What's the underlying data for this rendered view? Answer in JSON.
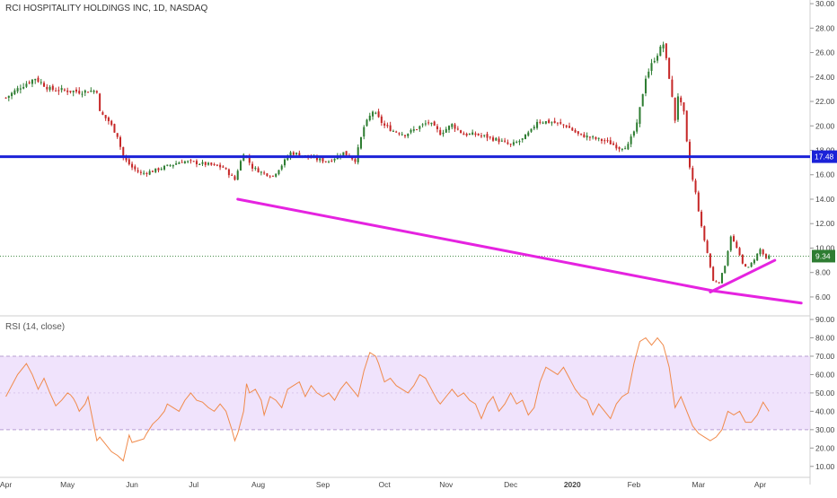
{
  "chart_data": [
    {
      "type": "candlestick",
      "title": "RCI HOSPITALITY HOLDINGS INC, 1D, NASDAQ",
      "y_ticks": [
        "6.00",
        "8.00",
        "10.00",
        "12.00",
        "14.00",
        "16.00",
        "18.00",
        "20.00",
        "22.00",
        "24.00",
        "26.00",
        "28.00",
        "30.00"
      ],
      "ylim": [
        4.6,
        30.3
      ],
      "x_labels": [
        "Apr",
        "May",
        "Jun",
        "Jul",
        "Aug",
        "Sep",
        "Oct",
        "Nov",
        "Dec",
        "2020",
        "Feb",
        "Mar",
        "Apr"
      ],
      "x_positions": [
        0,
        21,
        43,
        64,
        86,
        108,
        129,
        150,
        172,
        193,
        214,
        236,
        257
      ],
      "x_range": [
        -2,
        274
      ],
      "close_path": [
        [
          0,
          22.3
        ],
        [
          5,
          23.2
        ],
        [
          10,
          23.9
        ],
        [
          15,
          23.0
        ],
        [
          20,
          22.9
        ],
        [
          25,
          22.8
        ],
        [
          31,
          22.9
        ],
        [
          32,
          21.1
        ],
        [
          35,
          20.4
        ],
        [
          38,
          19.2
        ],
        [
          40,
          17.4
        ],
        [
          43,
          16.6
        ],
        [
          46,
          16.1
        ],
        [
          50,
          16.3
        ],
        [
          55,
          16.7
        ],
        [
          60,
          17.1
        ],
        [
          64,
          17.0
        ],
        [
          70,
          16.8
        ],
        [
          74,
          16.6
        ],
        [
          78,
          15.6
        ],
        [
          79,
          16.4
        ],
        [
          81,
          17.8
        ],
        [
          84,
          16.6
        ],
        [
          87,
          16.2
        ],
        [
          91,
          15.9
        ],
        [
          94,
          16.8
        ],
        [
          97,
          17.8
        ],
        [
          101,
          17.6
        ],
        [
          105,
          17.3
        ],
        [
          110,
          17.1
        ],
        [
          115,
          17.8
        ],
        [
          119,
          17.2
        ],
        [
          122,
          19.9
        ],
        [
          125,
          21.2
        ],
        [
          129,
          20.0
        ],
        [
          132,
          19.6
        ],
        [
          136,
          19.3
        ],
        [
          140,
          19.8
        ],
        [
          144,
          20.3
        ],
        [
          148,
          19.4
        ],
        [
          152,
          20.1
        ],
        [
          156,
          19.3
        ],
        [
          160,
          19.3
        ],
        [
          164,
          19.1
        ],
        [
          168,
          18.8
        ],
        [
          172,
          18.4
        ],
        [
          176,
          18.9
        ],
        [
          179,
          19.6
        ],
        [
          181,
          20.4
        ],
        [
          186,
          20.3
        ],
        [
          191,
          20.0
        ],
        [
          195,
          19.3
        ],
        [
          200,
          19.0
        ],
        [
          205,
          18.7
        ],
        [
          209,
          18.2
        ],
        [
          212,
          18.4
        ],
        [
          215,
          20.1
        ],
        [
          218,
          24.0
        ],
        [
          221,
          25.5
        ],
        [
          224,
          26.7
        ],
        [
          226,
          24.0
        ],
        [
          228,
          20.5
        ],
        [
          229,
          22.5
        ],
        [
          231,
          21.0
        ],
        [
          232,
          18.6
        ],
        [
          233,
          16.6
        ],
        [
          235,
          14.5
        ],
        [
          237,
          11.7
        ],
        [
          239,
          9.6
        ],
        [
          241,
          7.3
        ],
        [
          243,
          7.2
        ],
        [
          245,
          8.6
        ],
        [
          247,
          11.0
        ],
        [
          249,
          10.0
        ],
        [
          251,
          8.7
        ],
        [
          253,
          8.4
        ],
        [
          255,
          9.1
        ],
        [
          257,
          9.9
        ],
        [
          259,
          9.1
        ],
        [
          260,
          9.34
        ]
      ],
      "current_price": "9.34",
      "horizontal_level": {
        "value": 17.48,
        "label": "17.48",
        "color": "#1b22d8"
      },
      "trendlines": [
        {
          "name": "support-trendline",
          "color": "#e523e0",
          "points": [
            [
              79,
              14.0
            ],
            [
              241,
              6.5
            ],
            [
              271,
              5.5
            ]
          ]
        },
        {
          "name": "short-uptrend-line",
          "color": "#e523e0",
          "points": [
            [
              240,
              6.4
            ],
            [
              262,
              9.0
            ]
          ]
        }
      ],
      "up_color": "#2e7d32",
      "down_color": "#c62828"
    },
    {
      "type": "line",
      "title": "RSI (14, close)",
      "y_ticks": [
        "10.00",
        "20.00",
        "30.00",
        "40.00",
        "50.00",
        "60.00",
        "70.00",
        "80.00",
        "90.00"
      ],
      "ylim": [
        5,
        91
      ],
      "band": [
        30,
        70
      ],
      "band_color": "#ebd9fb",
      "line_color": "#f08a4b",
      "x_range": [
        -2,
        274
      ],
      "points": [
        [
          0,
          48
        ],
        [
          4,
          60
        ],
        [
          7,
          66
        ],
        [
          9,
          60
        ],
        [
          11,
          52
        ],
        [
          13,
          58
        ],
        [
          15,
          50
        ],
        [
          17,
          43
        ],
        [
          19,
          46
        ],
        [
          21,
          50
        ],
        [
          22,
          49
        ],
        [
          23,
          47
        ],
        [
          24,
          44
        ],
        [
          25,
          40
        ],
        [
          27,
          44
        ],
        [
          28,
          48
        ],
        [
          29,
          40
        ],
        [
          30,
          32
        ],
        [
          31,
          24
        ],
        [
          32,
          26
        ],
        [
          34,
          22
        ],
        [
          36,
          18
        ],
        [
          38,
          16
        ],
        [
          40,
          13
        ],
        [
          41,
          20
        ],
        [
          42,
          27
        ],
        [
          43,
          23
        ],
        [
          45,
          24
        ],
        [
          47,
          25
        ],
        [
          48,
          28
        ],
        [
          50,
          33
        ],
        [
          52,
          36
        ],
        [
          54,
          40
        ],
        [
          55,
          44
        ],
        [
          57,
          42
        ],
        [
          59,
          40
        ],
        [
          61,
          46
        ],
        [
          63,
          50
        ],
        [
          65,
          46
        ],
        [
          67,
          45
        ],
        [
          69,
          42
        ],
        [
          71,
          40
        ],
        [
          73,
          44
        ],
        [
          75,
          40
        ],
        [
          77,
          30
        ],
        [
          78,
          24
        ],
        [
          79,
          28
        ],
        [
          81,
          40
        ],
        [
          82,
          55
        ],
        [
          83,
          50
        ],
        [
          85,
          52
        ],
        [
          87,
          46
        ],
        [
          88,
          38
        ],
        [
          90,
          48
        ],
        [
          92,
          46
        ],
        [
          94,
          42
        ],
        [
          96,
          52
        ],
        [
          98,
          54
        ],
        [
          100,
          56
        ],
        [
          102,
          48
        ],
        [
          104,
          54
        ],
        [
          106,
          50
        ],
        [
          108,
          48
        ],
        [
          110,
          50
        ],
        [
          112,
          46
        ],
        [
          114,
          52
        ],
        [
          116,
          56
        ],
        [
          118,
          52
        ],
        [
          120,
          48
        ],
        [
          122,
          62
        ],
        [
          124,
          72
        ],
        [
          126,
          70
        ],
        [
          127,
          66
        ],
        [
          129,
          56
        ],
        [
          131,
          58
        ],
        [
          133,
          54
        ],
        [
          135,
          52
        ],
        [
          137,
          50
        ],
        [
          139,
          54
        ],
        [
          141,
          60
        ],
        [
          143,
          58
        ],
        [
          145,
          52
        ],
        [
          147,
          46
        ],
        [
          148,
          44
        ],
        [
          150,
          48
        ],
        [
          152,
          52
        ],
        [
          154,
          48
        ],
        [
          156,
          50
        ],
        [
          158,
          46
        ],
        [
          160,
          44
        ],
        [
          162,
          36
        ],
        [
          164,
          44
        ],
        [
          166,
          48
        ],
        [
          168,
          40
        ],
        [
          170,
          44
        ],
        [
          172,
          50
        ],
        [
          174,
          44
        ],
        [
          176,
          46
        ],
        [
          178,
          38
        ],
        [
          180,
          42
        ],
        [
          182,
          56
        ],
        [
          184,
          64
        ],
        [
          186,
          62
        ],
        [
          188,
          60
        ],
        [
          190,
          64
        ],
        [
          192,
          58
        ],
        [
          194,
          52
        ],
        [
          196,
          48
        ],
        [
          198,
          46
        ],
        [
          200,
          38
        ],
        [
          202,
          44
        ],
        [
          204,
          40
        ],
        [
          206,
          36
        ],
        [
          208,
          44
        ],
        [
          210,
          48
        ],
        [
          212,
          50
        ],
        [
          214,
          66
        ],
        [
          216,
          78
        ],
        [
          218,
          80
        ],
        [
          220,
          76
        ],
        [
          222,
          80
        ],
        [
          224,
          76
        ],
        [
          226,
          64
        ],
        [
          228,
          42
        ],
        [
          230,
          48
        ],
        [
          232,
          40
        ],
        [
          234,
          32
        ],
        [
          236,
          28
        ],
        [
          238,
          26
        ],
        [
          240,
          24
        ],
        [
          242,
          26
        ],
        [
          244,
          30
        ],
        [
          246,
          40
        ],
        [
          248,
          38
        ],
        [
          250,
          40
        ],
        [
          252,
          34
        ],
        [
          254,
          34
        ],
        [
          256,
          38
        ],
        [
          258,
          45
        ],
        [
          260,
          40
        ]
      ]
    }
  ]
}
